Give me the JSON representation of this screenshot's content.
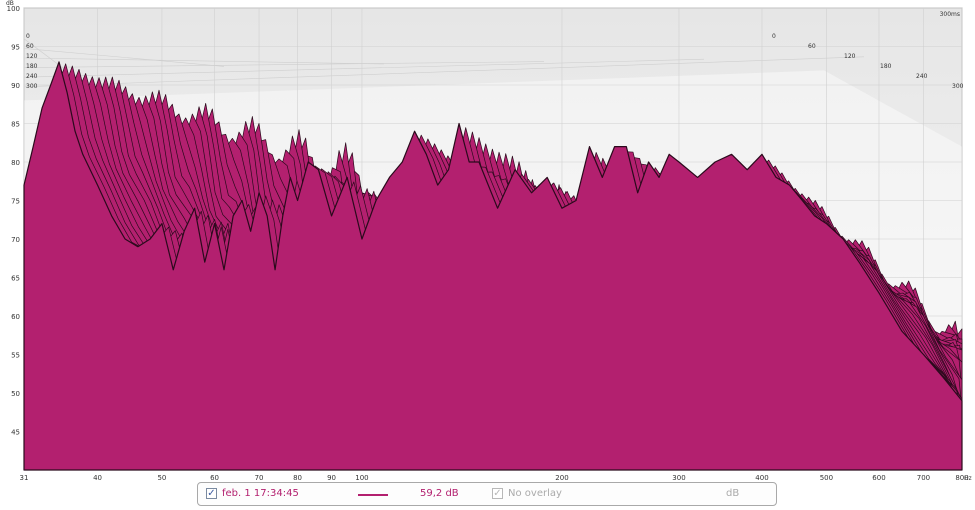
{
  "colors": {
    "fill": "#b3206f",
    "stroke": "#2a0a1c",
    "legend_trace": "#b3206f",
    "legend_text": "#b3206f",
    "disabled_text": "#aaaaaa",
    "wall_bg": "#ececec",
    "grid": "#d0d0d0"
  },
  "chart_data": {
    "type": "area",
    "title": "",
    "xlabel": "",
    "ylabel": "",
    "x_scale": "log",
    "xlim": [
      31,
      800
    ],
    "ylim": [
      40,
      100
    ],
    "x_unit": "Hz",
    "y_unit": "dB",
    "x_ticks": [
      31,
      40,
      50,
      60,
      70,
      80,
      90,
      100,
      200,
      300,
      400,
      500,
      600,
      700,
      800
    ],
    "y_ticks": [
      45,
      50,
      55,
      60,
      65,
      70,
      75,
      80,
      85,
      90,
      95,
      100
    ],
    "time_unit": "ms",
    "time_ticks": [
      0,
      60,
      120,
      180,
      240,
      300
    ],
    "time_range_ms": [
      0,
      300
    ],
    "grid": true,
    "front_slice_ms": 0,
    "front_slice": {
      "x": [
        31,
        32,
        33,
        34,
        35,
        36,
        37,
        38,
        40,
        42,
        44,
        46,
        48,
        50,
        52,
        54,
        56,
        58,
        60,
        62,
        64,
        66,
        68,
        70,
        72,
        74,
        76,
        78,
        80,
        83,
        86,
        90,
        95,
        100,
        105,
        110,
        115,
        120,
        125,
        130,
        135,
        140,
        145,
        150,
        160,
        170,
        180,
        190,
        200,
        210,
        220,
        230,
        240,
        250,
        260,
        270,
        280,
        290,
        300,
        320,
        340,
        360,
        380,
        400,
        420,
        440,
        460,
        480,
        500,
        530,
        560,
        600,
        650,
        700,
        750,
        800
      ],
      "y": [
        77,
        82,
        87,
        90,
        93,
        89,
        84,
        81,
        77,
        73,
        70,
        69,
        70,
        72,
        66,
        71,
        74,
        67,
        72,
        66,
        73,
        75,
        71,
        76,
        73,
        66,
        73,
        78,
        75,
        80,
        79,
        73,
        78,
        70,
        75,
        78,
        80,
        84,
        81,
        77,
        79,
        85,
        80,
        80,
        74,
        79,
        76,
        78,
        74,
        75,
        82,
        78,
        82,
        82,
        76,
        80,
        78,
        81,
        80,
        78,
        80,
        81,
        79,
        81,
        78,
        77,
        75,
        73,
        72,
        70,
        67,
        63,
        58,
        55,
        52,
        49
      ]
    },
    "legend": [
      {
        "label": "feb. 1 17:34:45",
        "value": "59,2 dB",
        "checked": true
      },
      {
        "label": "No overlay",
        "value": "",
        "checked": true,
        "disabled": true
      }
    ]
  },
  "legend": {
    "series_label": "feb. 1 17:34:45",
    "series_value": "59,2 dB",
    "overlay_label": "No overlay",
    "unit_label": "dB",
    "check_glyph": "✓"
  },
  "axis_text": {
    "x_unit_label": "Hz",
    "y_unit_label": "dB",
    "time_end_label": "300ms"
  }
}
